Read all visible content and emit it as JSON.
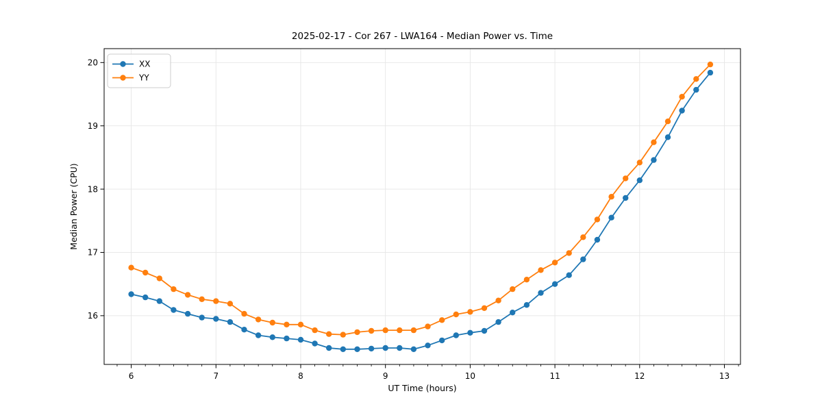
{
  "chart_data": {
    "type": "line",
    "title": "2025-02-17 - Cor 267 - LWA164 - Median Power vs. Time",
    "xlabel": "UT Time (hours)",
    "ylabel": "Median Power (CPU)",
    "xlim": [
      5.68,
      13.19
    ],
    "ylim": [
      15.23,
      20.22
    ],
    "x_ticks": [
      6,
      7,
      8,
      9,
      10,
      11,
      12,
      13
    ],
    "y_ticks": [
      16,
      17,
      18,
      19,
      20
    ],
    "x_minor_tick_step": 0.1666667,
    "grid": true,
    "grid_color": "#e6e6e6",
    "spine_color": "#000000",
    "legend": {
      "position": "upper-left"
    },
    "x": [
      6.0,
      6.1667,
      6.3333,
      6.5,
      6.6667,
      6.8333,
      7.0,
      7.1667,
      7.3333,
      7.5,
      7.6667,
      7.8333,
      8.0,
      8.1667,
      8.3333,
      8.5,
      8.6667,
      8.8333,
      9.0,
      9.1667,
      9.3333,
      9.5,
      9.6667,
      9.8333,
      10.0,
      10.1667,
      10.3333,
      10.5,
      10.6667,
      10.8333,
      11.0,
      11.1667,
      11.3333,
      11.5,
      11.6667,
      11.8333,
      12.0,
      12.1667,
      12.3333,
      12.5,
      12.6667,
      12.8333
    ],
    "series": [
      {
        "name": "XX",
        "color": "#1f77b4",
        "marker": "circle",
        "values": [
          16.34,
          16.29,
          16.23,
          16.09,
          16.03,
          15.97,
          15.95,
          15.9,
          15.78,
          15.69,
          15.66,
          15.64,
          15.62,
          15.56,
          15.49,
          15.47,
          15.47,
          15.48,
          15.49,
          15.49,
          15.47,
          15.53,
          15.61,
          15.69,
          15.73,
          15.76,
          15.9,
          16.05,
          16.17,
          16.36,
          16.5,
          16.64,
          16.89,
          17.2,
          17.55,
          17.86,
          18.14,
          18.46,
          18.82,
          19.24,
          19.57,
          19.84
        ]
      },
      {
        "name": "YY",
        "color": "#ff7f0e",
        "marker": "circle",
        "values": [
          16.76,
          16.68,
          16.59,
          16.42,
          16.33,
          16.26,
          16.23,
          16.19,
          16.03,
          15.94,
          15.89,
          15.86,
          15.86,
          15.77,
          15.71,
          15.7,
          15.74,
          15.76,
          15.77,
          15.77,
          15.77,
          15.83,
          15.93,
          16.02,
          16.06,
          16.12,
          16.24,
          16.42,
          16.57,
          16.72,
          16.84,
          16.99,
          17.24,
          17.52,
          17.88,
          18.17,
          18.42,
          18.74,
          19.07,
          19.46,
          19.74,
          19.97
        ]
      }
    ]
  }
}
